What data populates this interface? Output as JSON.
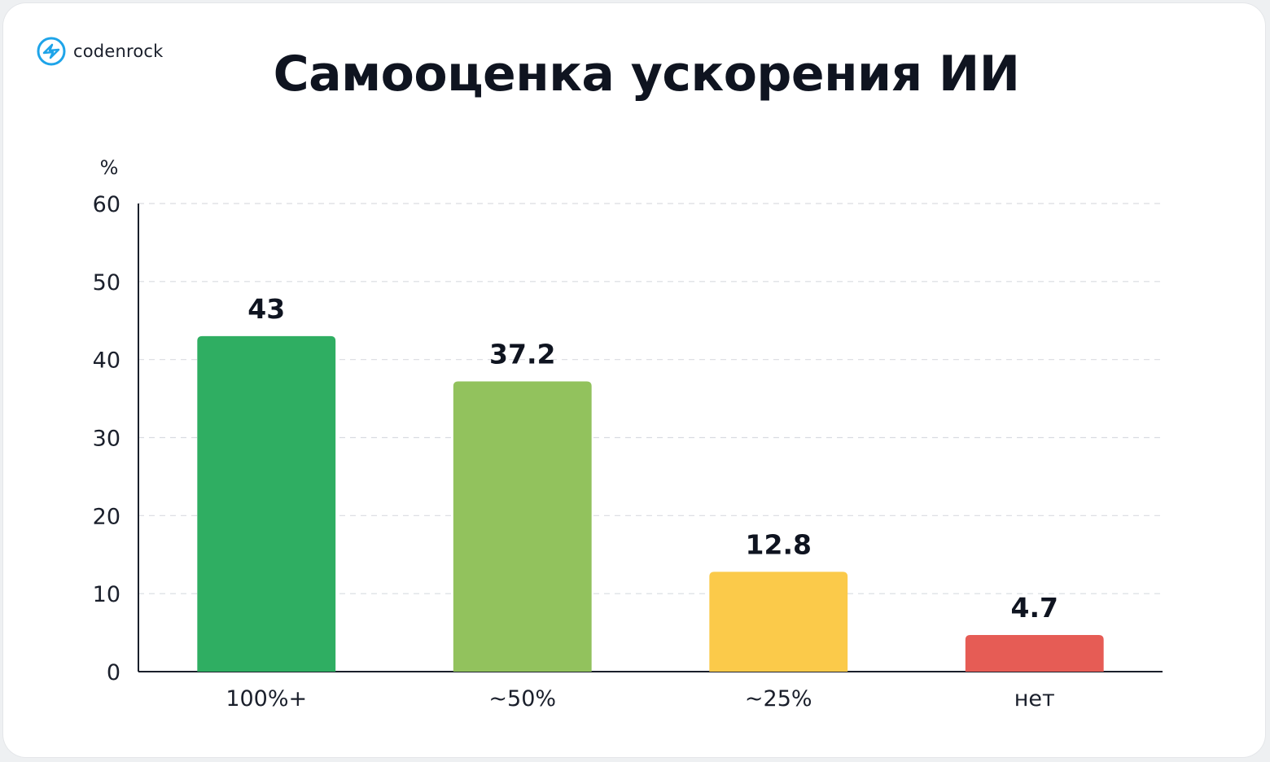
{
  "brand": {
    "name": "codenrock",
    "icon": "codenrock-logo-icon",
    "color": "#1ea4e9"
  },
  "chart_data": {
    "type": "bar",
    "title": "Самооценка ускорения ИИ",
    "ylabel": "%",
    "xlabel": "",
    "categories": [
      "100%+",
      "~50%",
      "~25%",
      "нет"
    ],
    "values": [
      43,
      37.2,
      12.8,
      4.7
    ],
    "value_labels": [
      "43",
      "37.2",
      "12.8",
      "4.7"
    ],
    "colors": [
      "#2fae62",
      "#92c25d",
      "#fbca4a",
      "#e65c55"
    ],
    "ylim": [
      0,
      60
    ],
    "yticks": [
      0,
      10,
      20,
      30,
      40,
      50,
      60
    ],
    "ytick_labels": [
      "0",
      "10",
      "20",
      "30",
      "40",
      "50",
      "60"
    ],
    "grid": true,
    "legend": "none"
  }
}
